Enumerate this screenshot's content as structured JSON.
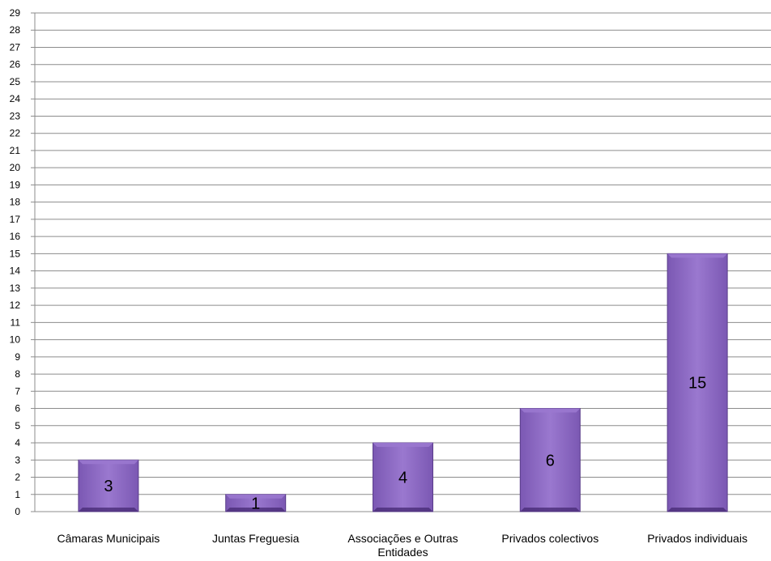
{
  "chart_data": {
    "type": "bar",
    "title": "",
    "xlabel": "",
    "ylabel": "",
    "categories": [
      [
        "Câmaras Municipais"
      ],
      [
        "Juntas Freguesia"
      ],
      [
        "Associações e Outras",
        "Entidades"
      ],
      [
        "Privados colectivos"
      ],
      [
        "Privados individuais"
      ]
    ],
    "values": [
      3,
      1,
      4,
      6,
      15
    ],
    "ylim": [
      0,
      29
    ],
    "ytick_step": 1,
    "grid": true,
    "legend": "none",
    "colors": {
      "bar_light": "#9a78cf",
      "bar_mid": "#7b58b3",
      "bar_dark": "#4a2d78",
      "bar_edge": "#5a3d8a",
      "grid": "#8c8c8c",
      "axis": "#8c8c8c"
    }
  }
}
